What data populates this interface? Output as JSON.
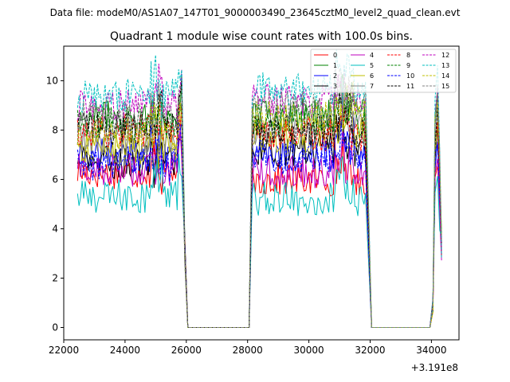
{
  "header": {
    "data_file": "Data file: modeM0/AS1A07_147T01_9000003490_23645cztM0_level2_quad_clean.evt"
  },
  "chart_data": {
    "type": "line",
    "title": "Quadrant 1 module wise count rates with 100.0s bins.",
    "xlabel": "",
    "ylabel": "",
    "x_offset_label": "+3.191e8",
    "xlim": [
      22000,
      34900
    ],
    "ylim": [
      -0.5,
      11.4
    ],
    "xticks": [
      22000,
      24000,
      26000,
      28000,
      30000,
      32000,
      34000
    ],
    "yticks": [
      0,
      2,
      4,
      6,
      8,
      10
    ],
    "legend_location": "upper-right",
    "segments": [
      {
        "start": 22450,
        "end": 25850
      },
      {
        "start": 28150,
        "end": 31850
      },
      {
        "start": 34100,
        "end": 34350
      }
    ],
    "gap_end_points": [
      25950,
      26050,
      28050,
      32050,
      33950
    ],
    "series": [
      {
        "name": "0",
        "color": "#ff0000",
        "style": "solid",
        "level": 6.3,
        "level2": 6.0
      },
      {
        "name": "1",
        "color": "#008000",
        "style": "solid",
        "level": 8.5,
        "level2": 8.6
      },
      {
        "name": "2",
        "color": "#0000ff",
        "style": "solid",
        "level": 7.0,
        "level2": 7.0
      },
      {
        "name": "3",
        "color": "#000000",
        "style": "solid",
        "level": 6.7,
        "level2": 7.2
      },
      {
        "name": "4",
        "color": "#bf00bf",
        "style": "solid",
        "level": 6.4,
        "level2": 6.3
      },
      {
        "name": "5",
        "color": "#00bfbf",
        "style": "solid",
        "level": 5.3,
        "level2": 5.2
      },
      {
        "name": "6",
        "color": "#bfbf00",
        "style": "solid",
        "level": 7.3,
        "level2": 7.8
      },
      {
        "name": "7",
        "color": "#808080",
        "style": "solid",
        "level": 7.6,
        "level2": 8.0
      },
      {
        "name": "8",
        "color": "#ff0000",
        "style": "dashed",
        "level": 8.0,
        "level2": 7.8
      },
      {
        "name": "9",
        "color": "#008000",
        "style": "dashed",
        "level": 8.3,
        "level2": 8.4
      },
      {
        "name": "10",
        "color": "#0000ff",
        "style": "dashed",
        "level": 6.6,
        "level2": 6.9
      },
      {
        "name": "11",
        "color": "#000000",
        "style": "dashed",
        "level": 8.1,
        "level2": 8.0
      },
      {
        "name": "12",
        "color": "#bf00bf",
        "style": "dashed",
        "level": 9.0,
        "level2": 9.2
      },
      {
        "name": "13",
        "color": "#00bfbf",
        "style": "dashed",
        "level": 9.4,
        "level2": 9.7
      },
      {
        "name": "14",
        "color": "#bfbf00",
        "style": "dashed",
        "level": 7.8,
        "level2": 8.6
      },
      {
        "name": "15",
        "color": "#808080",
        "style": "dashed",
        "level": 8.6,
        "level2": 8.9
      }
    ]
  }
}
